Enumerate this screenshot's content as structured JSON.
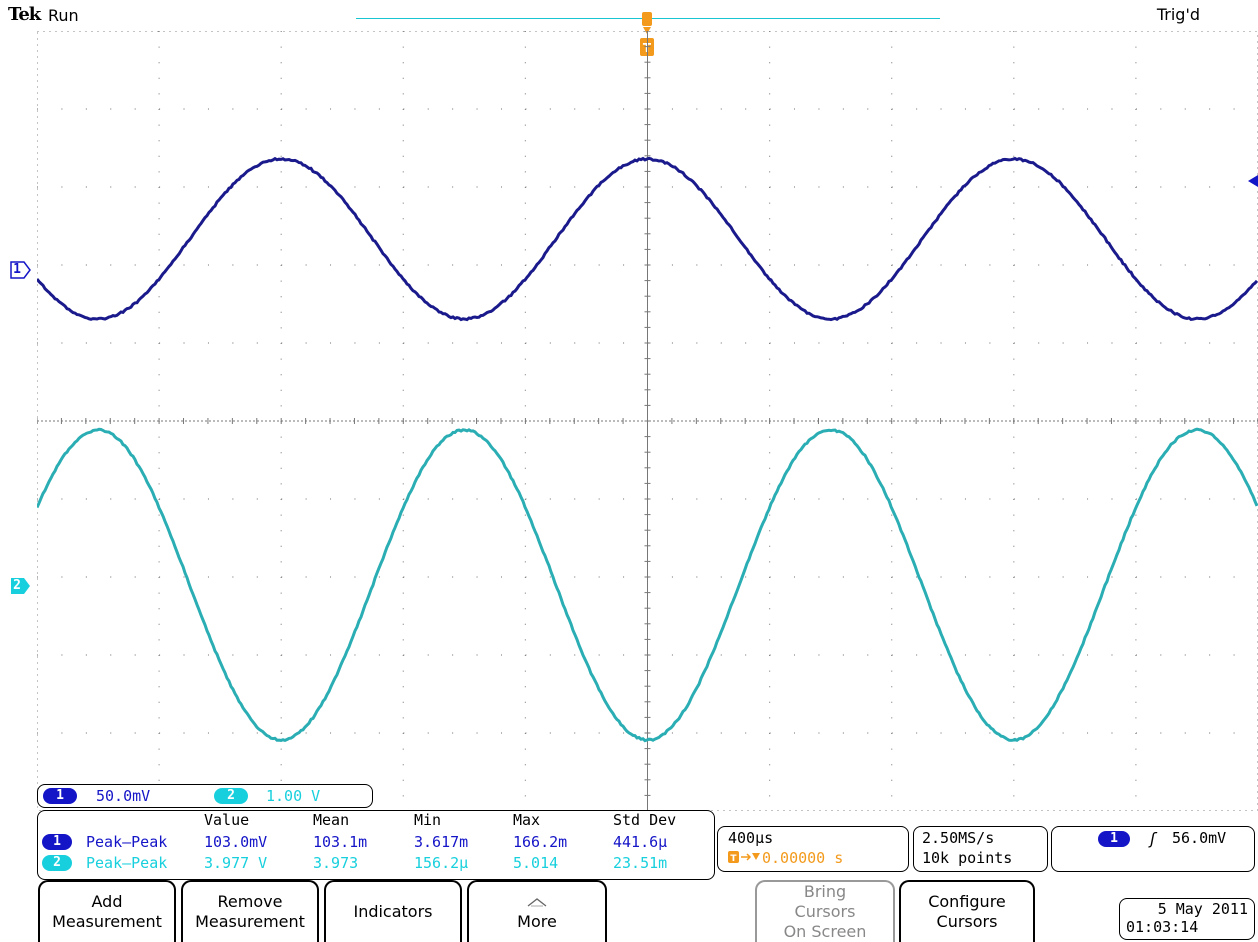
{
  "header": {
    "brand": "Tek",
    "state": "Run",
    "trigger_status": "Trig'd"
  },
  "markers": {
    "trigger_top": "T",
    "ch1": "1",
    "ch2": "2"
  },
  "channels": [
    {
      "id": "1",
      "scale": "50.0mV",
      "color": "#1515c8"
    },
    {
      "id": "2",
      "scale": "1.00 V",
      "color": "#18d0dd"
    }
  ],
  "measurements": {
    "headers": [
      "Value",
      "Mean",
      "Min",
      "Max",
      "Std Dev"
    ],
    "rows": [
      {
        "ch": "1",
        "type": "Peak–Peak",
        "value": "103.0mV",
        "mean": "103.1m",
        "min": "3.617m",
        "max": "166.2m",
        "std": "441.6µ"
      },
      {
        "ch": "2",
        "type": "Peak–Peak",
        "value": "3.977 V",
        "mean": "3.973",
        "min": "156.2µ",
        "max": "5.014",
        "std": "23.51m"
      }
    ]
  },
  "timebase": {
    "scale": "400µs",
    "position": "0.00000 s"
  },
  "acquisition": {
    "rate": "2.50MS/s",
    "length": "10k points"
  },
  "trigger": {
    "source": "1",
    "slope_symbol": "ʃ",
    "level": "56.0mV"
  },
  "buttons": {
    "add_line1": "Add",
    "add_line2": "Measurement",
    "remove_line1": "Remove",
    "remove_line2": "Measurement",
    "indicators": "Indicators",
    "more": "More",
    "bring_line1": "Bring",
    "bring_line2": "Cursors",
    "bring_line3": "On Screen",
    "config_line1": "Configure",
    "config_line2": "Cursors"
  },
  "datetime": {
    "date": "5 May 2011",
    "time": "01:03:14"
  },
  "colors": {
    "ch1": "#1515c8",
    "ch2": "#18d0dd",
    "ch1_trace": "#1a1a8c",
    "ch2_trace": "#2aaeb4",
    "trigger": "#f39a1c"
  },
  "waveforms": {
    "ch1": {
      "period_s": 0.0012,
      "amplitude_divisions": 1.03,
      "offset_divisions": 0.0
    },
    "ch2": {
      "period_s": 0.0012,
      "amplitude_divisions": 3.98,
      "offset_divisions": -2.0
    }
  }
}
